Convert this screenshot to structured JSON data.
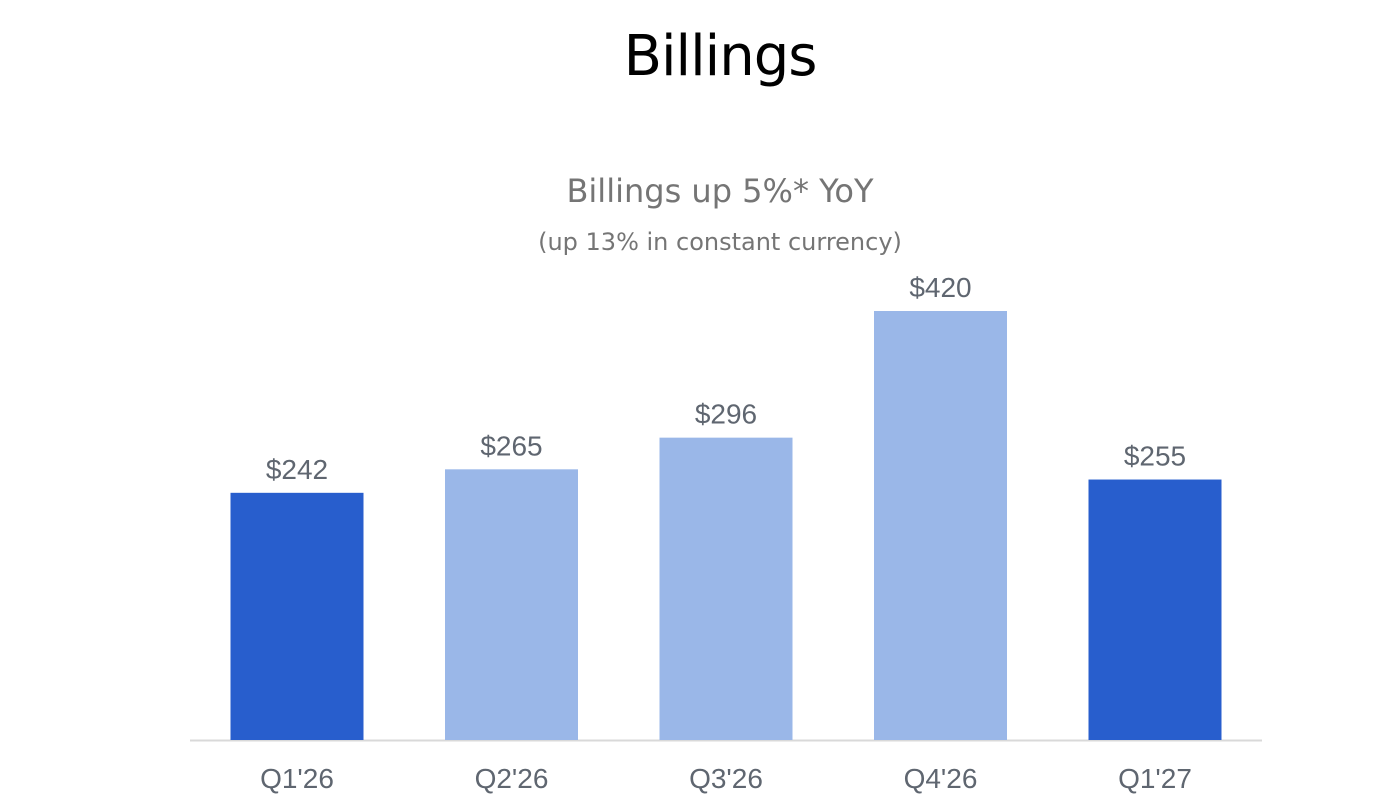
{
  "title": "Billings",
  "chart_data": {
    "type": "bar",
    "title": "Billings up 5%* YoY",
    "subtitle": "(up 13% in constant currency)",
    "categories": [
      "Q1'26",
      "Q2'26",
      "Q3'26",
      "Q4'26",
      "Q1'27"
    ],
    "values": [
      242,
      265,
      296,
      420,
      255
    ],
    "data_labels": [
      "$242",
      "$265",
      "$296",
      "$420",
      "$255"
    ],
    "highlighted": [
      true,
      false,
      false,
      false,
      true
    ],
    "colors": {
      "highlight": "#285ecd",
      "normal": "#9ab7e8",
      "axis": "#d9d9d9",
      "label": "#5f6670"
    },
    "xlabel": "",
    "ylabel": "",
    "ylim": [
      0,
      420
    ],
    "grid": false,
    "legend": "none"
  }
}
